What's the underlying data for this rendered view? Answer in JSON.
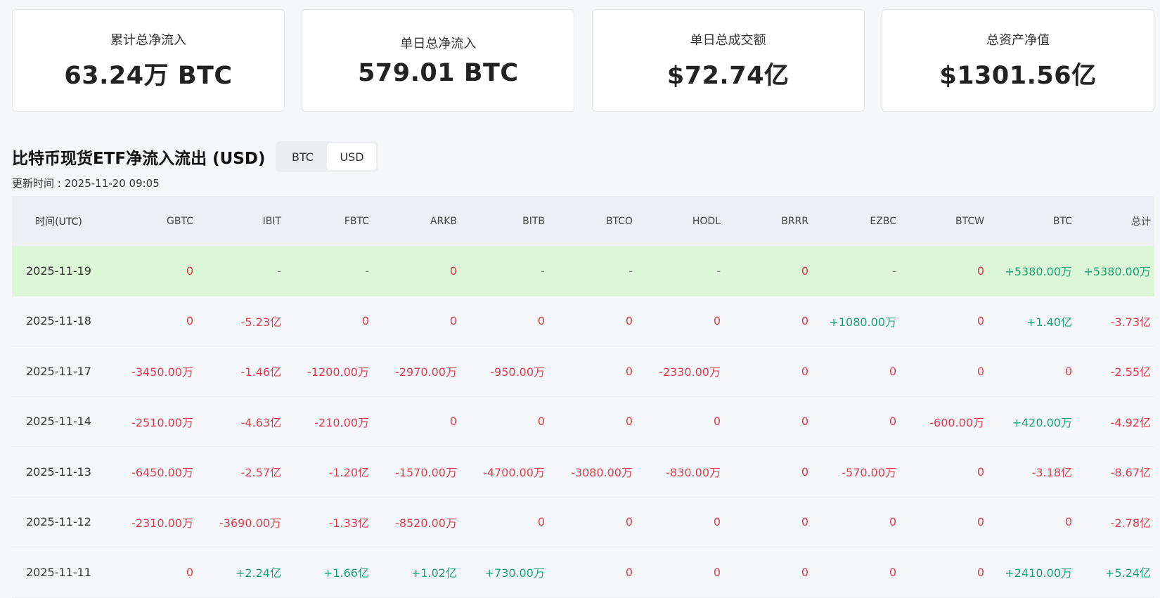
{
  "cards": [
    {
      "label": "累计总净流入",
      "value": "63.24万 BTC"
    },
    {
      "label": "单日总净流入",
      "value": "579.01 BTC"
    },
    {
      "label": "单日总成交额",
      "value": "$72.74亿"
    },
    {
      "label": "总资产净值",
      "value": "$1301.56亿"
    }
  ],
  "section": {
    "title": "比特币现货ETF净流入流出 (USD)",
    "toggle": {
      "btc": "BTC",
      "usd": "USD",
      "active": "USD"
    },
    "updated": "更新时间 : 2025-11-20 09:05"
  },
  "table": {
    "headers": [
      "时间(UTC)",
      "GBTC",
      "IBIT",
      "FBTC",
      "ARKB",
      "BITB",
      "BTCO",
      "HODL",
      "BRRR",
      "EZBC",
      "BTCW",
      "BTC",
      "总计"
    ],
    "rows": [
      [
        "2025-11-19",
        "0",
        "-",
        "-",
        "0",
        "-",
        "-",
        "-",
        "0",
        "-",
        "0",
        "+5380.00万",
        "+5380.00万"
      ],
      [
        "2025-11-18",
        "0",
        "-5.23亿",
        "0",
        "0",
        "0",
        "0",
        "0",
        "0",
        "+1080.00万",
        "0",
        "+1.40亿",
        "-3.73亿"
      ],
      [
        "2025-11-17",
        "-3450.00万",
        "-1.46亿",
        "-1200.00万",
        "-2970.00万",
        "-950.00万",
        "0",
        "-2330.00万",
        "0",
        "0",
        "0",
        "0",
        "-2.55亿"
      ],
      [
        "2025-11-14",
        "-2510.00万",
        "-4.63亿",
        "-210.00万",
        "0",
        "0",
        "0",
        "0",
        "0",
        "0",
        "-600.00万",
        "+420.00万",
        "-4.92亿"
      ],
      [
        "2025-11-13",
        "-6450.00万",
        "-2.57亿",
        "-1.20亿",
        "-1570.00万",
        "-4700.00万",
        "-3080.00万",
        "-830.00万",
        "0",
        "-570.00万",
        "0",
        "-3.18亿",
        "-8.67亿"
      ],
      [
        "2025-11-12",
        "-2310.00万",
        "-3690.00万",
        "-1.33亿",
        "-8520.00万",
        "0",
        "0",
        "0",
        "0",
        "0",
        "0",
        "0",
        "-2.78亿"
      ],
      [
        "2025-11-11",
        "0",
        "+2.24亿",
        "+1.66亿",
        "+1.02亿",
        "+730.00万",
        "0",
        "0",
        "0",
        "0",
        "0",
        "+2410.00万",
        "+5.24亿"
      ]
    ]
  },
  "colors": {
    "negative": "#e03b4e",
    "positive": "#1aa37a",
    "highlight_row": "#dcf7d5"
  }
}
